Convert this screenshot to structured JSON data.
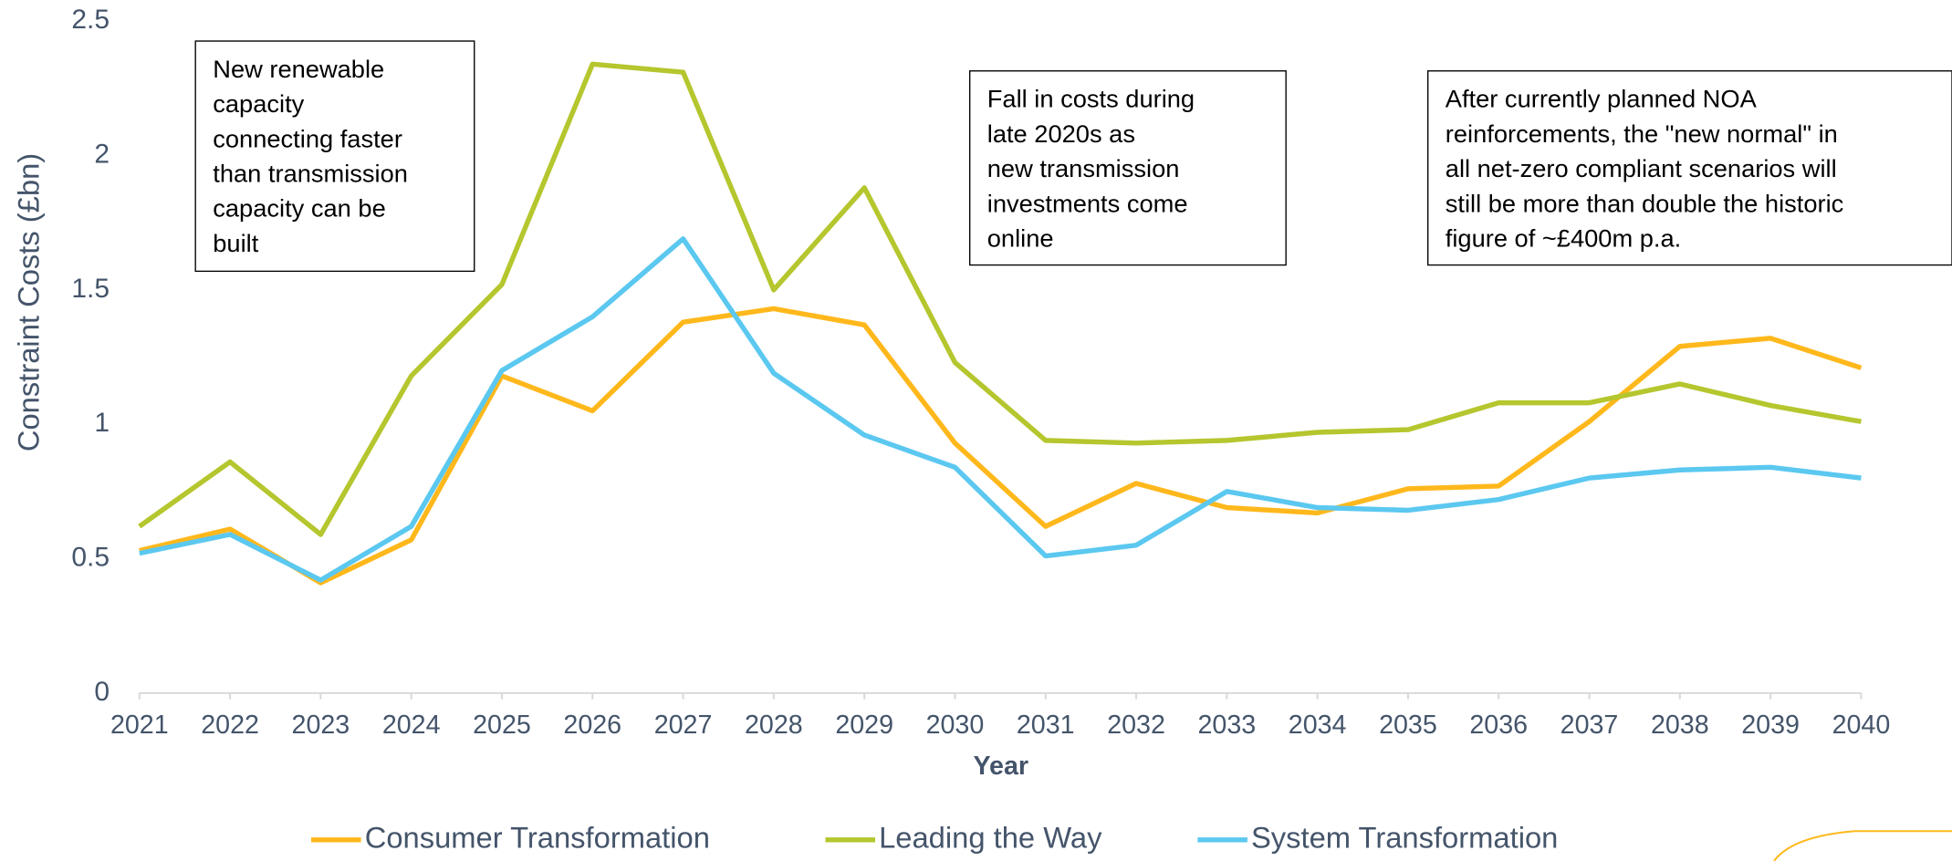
{
  "chart_data": {
    "type": "line",
    "y_label": "Constraint Costs (£bn)",
    "x_label": "Year",
    "categories": [
      "2021",
      "2022",
      "2023",
      "2024",
      "2025",
      "2026",
      "2027",
      "2028",
      "2029",
      "2030",
      "2031",
      "2032",
      "2033",
      "2034",
      "2035",
      "2036",
      "2037",
      "2038",
      "2039",
      "2040"
    ],
    "ylim": [
      0,
      2.5
    ],
    "yticks": [
      0,
      0.5,
      1,
      1.5,
      2,
      2.5
    ],
    "grid": false,
    "legend": "bottom",
    "series": [
      {
        "name": "Consumer Transformation",
        "color": "#ffb81c",
        "values": [
          0.53,
          0.61,
          0.41,
          0.57,
          1.18,
          1.05,
          1.38,
          1.43,
          1.37,
          0.93,
          0.62,
          0.78,
          0.69,
          0.67,
          0.76,
          0.77,
          1.01,
          1.29,
          1.32,
          1.21
        ]
      },
      {
        "name": "Leading the Way",
        "color": "#b5c62e",
        "values": [
          0.62,
          0.86,
          0.59,
          1.18,
          1.52,
          2.34,
          2.31,
          1.5,
          1.88,
          1.23,
          0.94,
          0.93,
          0.94,
          0.97,
          0.98,
          1.08,
          1.08,
          1.15,
          1.07,
          1.01
        ]
      },
      {
        "name": "System Transformation",
        "color": "#5bc8f0",
        "values": [
          0.52,
          0.59,
          0.42,
          0.62,
          1.2,
          1.4,
          1.69,
          1.19,
          0.96,
          0.84,
          0.51,
          0.55,
          0.75,
          0.69,
          0.68,
          0.72,
          0.8,
          0.83,
          0.84,
          0.8
        ]
      }
    ],
    "annotations": [
      {
        "lines": [
          "New renewable",
          "capacity",
          "connecting faster",
          "than transmission",
          "capacity can be",
          "built"
        ]
      },
      {
        "lines": [
          "Fall in costs during",
          "late 2020s as",
          "new transmission",
          "investments come",
          "online"
        ]
      },
      {
        "lines": [
          "After currently planned NOA",
          "reinforcements, the \"new normal\" in",
          "all net-zero compliant scenarios will",
          "still be more than double the historic",
          "figure of ~£400m p.a."
        ]
      }
    ]
  }
}
